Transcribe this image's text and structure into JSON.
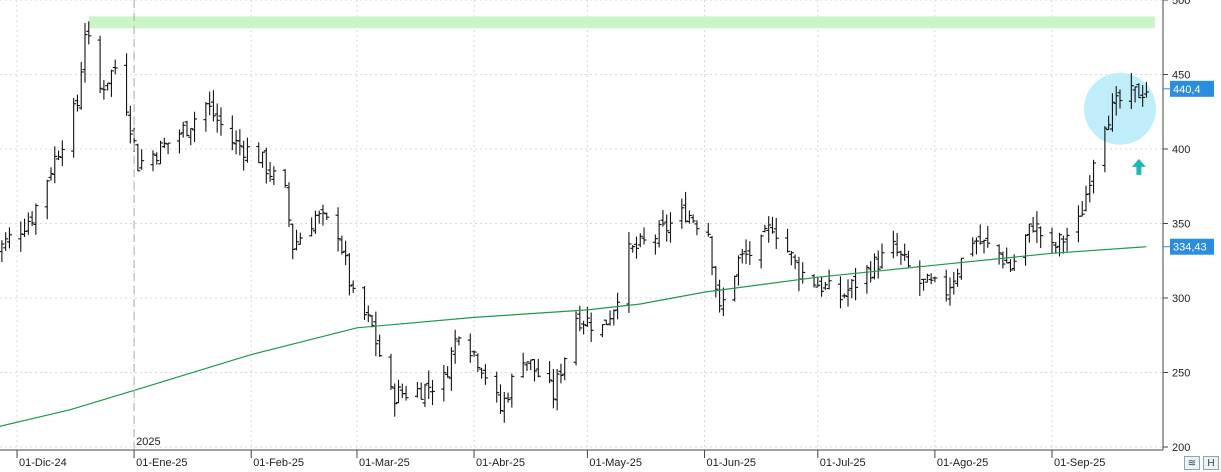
{
  "chart_data": {
    "type": "ohlc",
    "title": "",
    "xlabel": "",
    "ylabel": "",
    "ylim": [
      198,
      500
    ],
    "y_ticks": [
      200,
      250,
      300,
      350,
      400,
      450,
      500
    ],
    "y_tick_labels": [
      "200",
      "250",
      "300",
      "350",
      "400",
      "450",
      "500"
    ],
    "x_ticks": [
      {
        "date": "2024-12-01",
        "label": "01-Dic-24"
      },
      {
        "date": "2025-01-01",
        "label": "01-Ene-25"
      },
      {
        "date": "2025-02-01",
        "label": "01-Feb-25"
      },
      {
        "date": "2025-03-01",
        "label": "01-Mar-25"
      },
      {
        "date": "2025-04-01",
        "label": "01-Abr-25"
      },
      {
        "date": "2025-05-01",
        "label": "01-May-25"
      },
      {
        "date": "2025-06-01",
        "label": "01-Jun-25"
      },
      {
        "date": "2025-07-01",
        "label": "01-Jul-25"
      },
      {
        "date": "2025-08-01",
        "label": "01-Ago-25"
      },
      {
        "date": "2025-09-01",
        "label": "01-Sep-25"
      }
    ],
    "year_marker": {
      "date": "2025-01-01",
      "label": "2025"
    },
    "grid": true,
    "price_series": {
      "anchors": [
        [
          "2024-11-25",
          330
        ],
        [
          "2024-12-05",
          355
        ],
        [
          "2024-12-12",
          400
        ],
        [
          "2024-12-17",
          430
        ],
        [
          "2024-12-19",
          480
        ],
        [
          "2024-12-23",
          440
        ],
        [
          "2024-12-27",
          455
        ],
        [
          "2024-12-30",
          430
        ],
        [
          "2025-01-02",
          390
        ],
        [
          "2025-01-08",
          400
        ],
        [
          "2025-01-15",
          415
        ],
        [
          "2025-01-20",
          430
        ],
        [
          "2025-01-27",
          405
        ],
        [
          "2025-02-03",
          395
        ],
        [
          "2025-02-10",
          370
        ],
        [
          "2025-02-12",
          335
        ],
        [
          "2025-02-18",
          355
        ],
        [
          "2025-02-24",
          345
        ],
        [
          "2025-02-28",
          300
        ],
        [
          "2025-03-05",
          280
        ],
        [
          "2025-03-10",
          235
        ],
        [
          "2025-03-17",
          238
        ],
        [
          "2025-03-24",
          245
        ],
        [
          "2025-03-28",
          280
        ],
        [
          "2025-04-03",
          255
        ],
        [
          "2025-04-08",
          225
        ],
        [
          "2025-04-14",
          262
        ],
        [
          "2025-04-22",
          235
        ],
        [
          "2025-04-28",
          288
        ],
        [
          "2025-05-05",
          280
        ],
        [
          "2025-05-08",
          295
        ],
        [
          "2025-05-12",
          330
        ],
        [
          "2025-05-20",
          343
        ],
        [
          "2025-05-27",
          358
        ],
        [
          "2025-06-02",
          345
        ],
        [
          "2025-06-05",
          290
        ],
        [
          "2025-06-10",
          325
        ],
        [
          "2025-06-16",
          335
        ],
        [
          "2025-06-19",
          350
        ],
        [
          "2025-06-26",
          318
        ],
        [
          "2025-07-01",
          310
        ],
        [
          "2025-07-07",
          300
        ],
        [
          "2025-07-14",
          318
        ],
        [
          "2025-07-21",
          333
        ],
        [
          "2025-07-28",
          310
        ],
        [
          "2025-08-04",
          305
        ],
        [
          "2025-08-11",
          340
        ],
        [
          "2025-08-18",
          330
        ],
        [
          "2025-08-21",
          320
        ],
        [
          "2025-08-27",
          350
        ],
        [
          "2025-09-01",
          332
        ],
        [
          "2025-09-08",
          350
        ],
        [
          "2025-09-10",
          370
        ],
        [
          "2025-09-12",
          395
        ],
        [
          "2025-09-15",
          420
        ],
        [
          "2025-09-19",
          432
        ],
        [
          "2025-09-24",
          438
        ],
        [
          "2025-09-26",
          440.4
        ]
      ]
    },
    "moving_average": {
      "color": "#1f9a4a",
      "points": [
        [
          "2024-11-25",
          213
        ],
        [
          "2024-12-15",
          225
        ],
        [
          "2025-01-01",
          238
        ],
        [
          "2025-02-01",
          262
        ],
        [
          "2025-03-01",
          280
        ],
        [
          "2025-04-01",
          287
        ],
        [
          "2025-05-01",
          292
        ],
        [
          "2025-05-15",
          296
        ],
        [
          "2025-06-01",
          304
        ],
        [
          "2025-07-01",
          314
        ],
        [
          "2025-08-01",
          322
        ],
        [
          "2025-09-01",
          330
        ],
        [
          "2025-09-26",
          334.43
        ]
      ]
    },
    "resistance_band": {
      "y_from": 481,
      "y_to": 489,
      "color": "#c9f5c9"
    },
    "highlight_circle": {
      "date": "2025-09-19",
      "y": 427,
      "color": "#bfeefa"
    },
    "arrow": {
      "date": "2025-09-24",
      "y": 388,
      "direction": "up",
      "color": "#22b7b0"
    },
    "last_price": {
      "value": 440.4,
      "label": "440,4",
      "color": "#2a8de0"
    },
    "ma_last": {
      "value": 334.43,
      "label": "334,43",
      "color": "#2a8de0"
    }
  },
  "toolbar": {
    "btn1": "≋",
    "btn2": "H"
  }
}
